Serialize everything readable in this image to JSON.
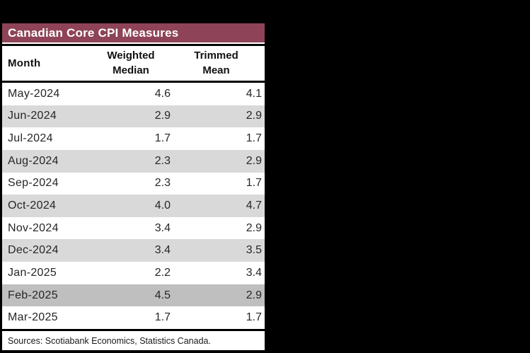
{
  "page": {
    "background": "#000000"
  },
  "table": {
    "title": "Canadian Core CPI Measures",
    "headers": {
      "month": "Month",
      "weighted_median": "Weighted\nMedian",
      "trimmed_mean": "Trimmed\nMean"
    },
    "rows": [
      {
        "month": "May-2024",
        "weighted_median": "4.6",
        "trimmed_mean": "4.1",
        "shade": "white"
      },
      {
        "month": "Jun-2024",
        "weighted_median": "2.9",
        "trimmed_mean": "2.9",
        "shade": "light"
      },
      {
        "month": "Jul-2024",
        "weighted_median": "1.7",
        "trimmed_mean": "1.7",
        "shade": "white"
      },
      {
        "month": "Aug-2024",
        "weighted_median": "2.3",
        "trimmed_mean": "2.9",
        "shade": "light"
      },
      {
        "month": "Sep-2024",
        "weighted_median": "2.3",
        "trimmed_mean": "1.7",
        "shade": "white"
      },
      {
        "month": "Oct-2024",
        "weighted_median": "4.0",
        "trimmed_mean": "4.7",
        "shade": "light"
      },
      {
        "month": "Nov-2024",
        "weighted_median": "3.4",
        "trimmed_mean": "2.9",
        "shade": "white"
      },
      {
        "month": "Dec-2024",
        "weighted_median": "3.4",
        "trimmed_mean": "3.5",
        "shade": "light"
      },
      {
        "month": "Jan-2025",
        "weighted_median": "2.2",
        "trimmed_mean": "3.4",
        "shade": "white"
      },
      {
        "month": "Feb-2025",
        "weighted_median": "4.5",
        "trimmed_mean": "2.9",
        "shade": "dark"
      },
      {
        "month": "Mar-2025",
        "weighted_median": "1.7",
        "trimmed_mean": "1.7",
        "shade": "white"
      }
    ],
    "source_note": "Sources: Scotiabank Economics, Statistics Canada.",
    "colors": {
      "title_bg": "#8E4358",
      "title_text": "#FFFFFF",
      "table_bg": "#FFFFFF",
      "border": "#000000",
      "stripe_light": "#D9D9D9",
      "stripe_dark": "#BFBFBF",
      "row_text": "#262626"
    }
  },
  "chart_data": {
    "type": "table",
    "title": "Canadian Core CPI Measures",
    "columns": [
      "Month",
      "Weighted Median",
      "Trimmed Mean"
    ],
    "rows": [
      [
        "May-2024",
        4.6,
        4.1
      ],
      [
        "Jun-2024",
        2.9,
        2.9
      ],
      [
        "Jul-2024",
        1.7,
        1.7
      ],
      [
        "Aug-2024",
        2.3,
        2.9
      ],
      [
        "Sep-2024",
        2.3,
        1.7
      ],
      [
        "Oct-2024",
        4.0,
        4.7
      ],
      [
        "Nov-2024",
        3.4,
        2.9
      ],
      [
        "Dec-2024",
        3.4,
        3.5
      ],
      [
        "Jan-2025",
        2.2,
        3.4
      ],
      [
        "Feb-2025",
        4.5,
        2.9
      ],
      [
        "Mar-2025",
        1.7,
        1.7
      ]
    ],
    "highlighted_row": "Feb-2025",
    "source": "Sources: Scotiabank Economics, Statistics Canada."
  }
}
